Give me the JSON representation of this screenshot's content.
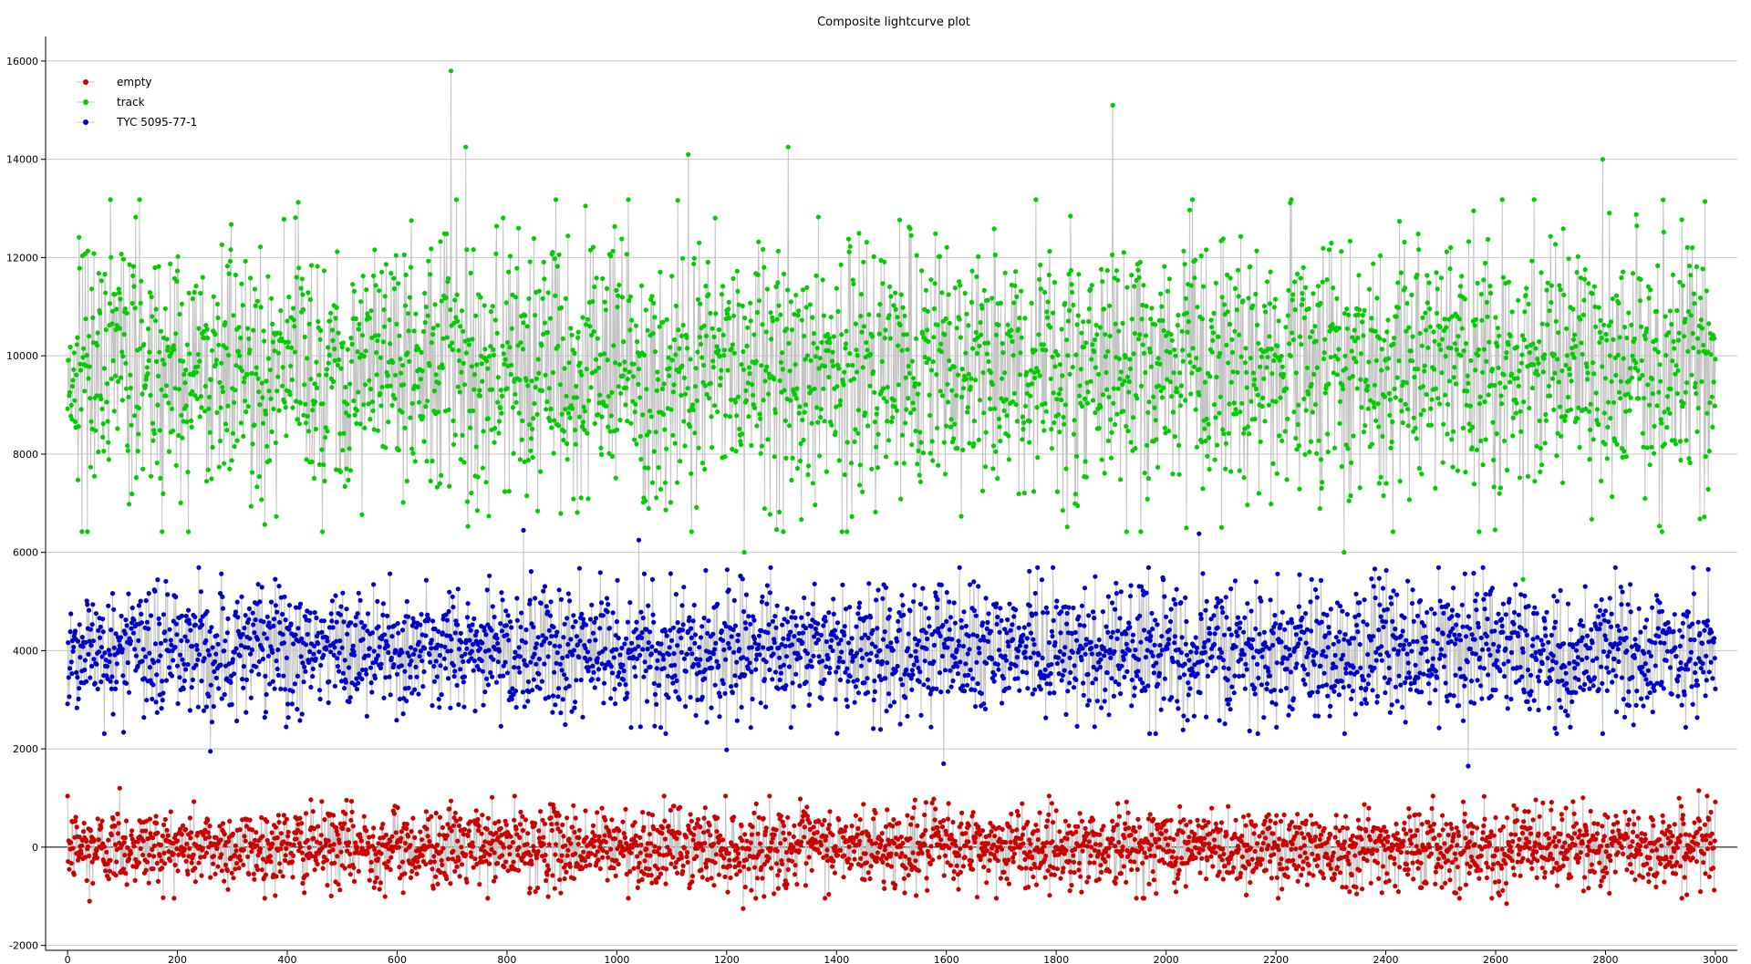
{
  "chart_data": {
    "type": "scatter",
    "title": "Composite lightcurve plot",
    "xlabel": "",
    "ylabel": "",
    "xlim": [
      -40,
      3040
    ],
    "ylim": [
      -2100,
      16500
    ],
    "xticks": [
      0,
      200,
      400,
      600,
      800,
      1000,
      1200,
      1400,
      1600,
      1800,
      2000,
      2200,
      2400,
      2600,
      2800,
      3000
    ],
    "yticks": [
      -2000,
      0,
      2000,
      4000,
      6000,
      8000,
      10000,
      12000,
      14000,
      16000
    ],
    "grid": "horizontal",
    "legend_position": "top-left",
    "n_points": 3001,
    "series": [
      {
        "name": "empty",
        "color": "#cc0000",
        "mean": 0,
        "std": 400,
        "x_range": [
          0,
          3000
        ],
        "notable_points": [
          {
            "x": 95,
            "y": 1200
          },
          {
            "x": 40,
            "y": -1100
          },
          {
            "x": 1230,
            "y": -1250
          },
          {
            "x": 2620,
            "y": -1150
          },
          {
            "x": 2970,
            "y": 1150
          }
        ]
      },
      {
        "name": "track",
        "color": "#00cc00",
        "mean": 9800,
        "std": 1300,
        "x_range": [
          0,
          3000
        ],
        "notable_points": [
          {
            "x": 698,
            "y": 15800
          },
          {
            "x": 1903,
            "y": 15100
          },
          {
            "x": 725,
            "y": 14250
          },
          {
            "x": 1312,
            "y": 14250
          },
          {
            "x": 2795,
            "y": 14000
          },
          {
            "x": 1130,
            "y": 14100
          },
          {
            "x": 1232,
            "y": 6000
          },
          {
            "x": 2324,
            "y": 6000
          },
          {
            "x": 2650,
            "y": 5450
          }
        ]
      },
      {
        "name": "TYC 5095-77-1",
        "color": "#0000cc",
        "mean": 4000,
        "std": 650,
        "x_range": [
          0,
          3000
        ],
        "notable_points": [
          {
            "x": 260,
            "y": 1950
          },
          {
            "x": 1200,
            "y": 1980
          },
          {
            "x": 1595,
            "y": 1700
          },
          {
            "x": 2550,
            "y": 1650
          },
          {
            "x": 830,
            "y": 6450
          },
          {
            "x": 1040,
            "y": 6250
          },
          {
            "x": 2060,
            "y": 6380
          }
        ]
      }
    ]
  }
}
